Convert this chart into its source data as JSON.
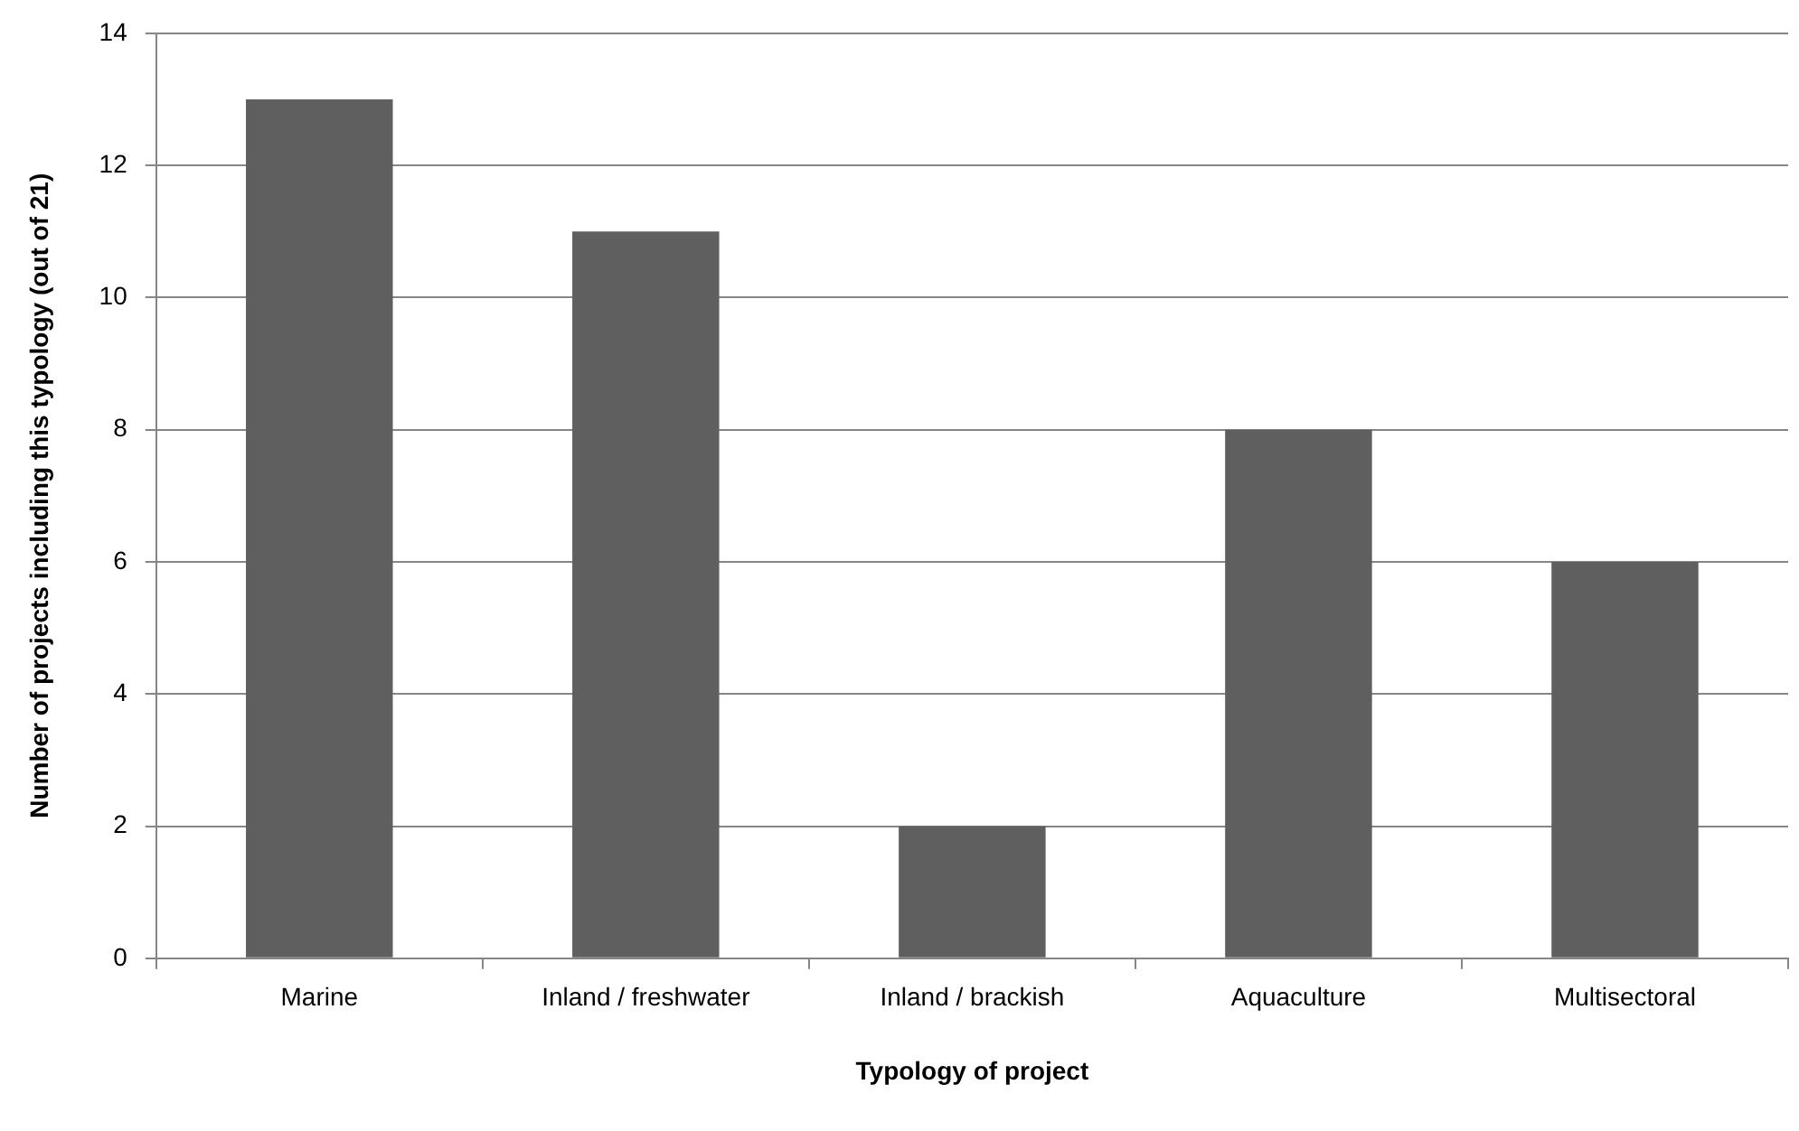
{
  "chart_data": {
    "type": "bar",
    "xlabel": "Typology of project",
    "ylabel": "Number of projects including this typology (out of 21)",
    "categories": [
      "Marine",
      "Inland / freshwater",
      "Inland / brackish",
      "Aquaculture",
      "Multisectoral"
    ],
    "values": [
      13,
      11,
      2,
      8,
      6
    ],
    "color": "#5f5f5f",
    "ylim": [
      0,
      14
    ],
    "yticks": [
      0,
      2,
      4,
      6,
      8,
      10,
      12,
      14
    ],
    "grid": "y"
  }
}
